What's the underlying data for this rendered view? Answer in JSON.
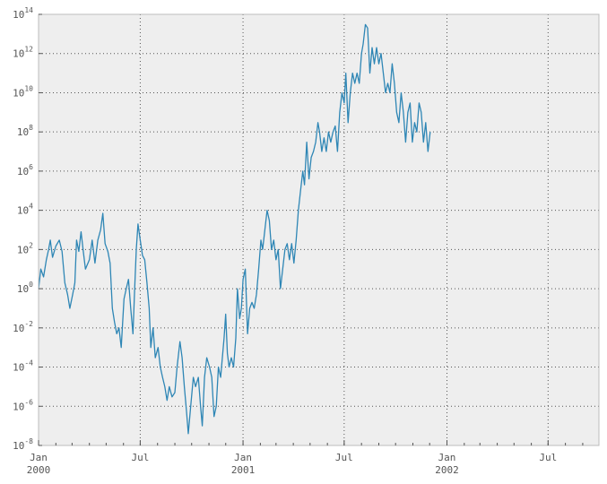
{
  "chart_data": {
    "type": "line",
    "title": "",
    "xlabel": "",
    "ylabel": "",
    "yscale": "log",
    "ylim": [
      1e-08,
      100000000000000.0
    ],
    "xlim": [
      "2000-01-01",
      "2002-09-30"
    ],
    "grid": true,
    "background": "#eeeeee",
    "line_color": "#2e86b5",
    "x_ticks": [
      {
        "date": "2000-01-01",
        "label": "Jan",
        "sub": "2000"
      },
      {
        "date": "2000-07-01",
        "label": "Jul",
        "sub": ""
      },
      {
        "date": "2001-01-01",
        "label": "Jan",
        "sub": "2001"
      },
      {
        "date": "2001-07-01",
        "label": "Jul",
        "sub": ""
      },
      {
        "date": "2002-01-01",
        "label": "Jan",
        "sub": "2002"
      },
      {
        "date": "2002-07-01",
        "label": "Jul",
        "sub": ""
      }
    ],
    "y_ticks": [
      {
        "value": 1e-08,
        "base": "10",
        "exp": "-8"
      },
      {
        "value": 1e-06,
        "base": "10",
        "exp": "-6"
      },
      {
        "value": 0.0001,
        "base": "10",
        "exp": "-4"
      },
      {
        "value": 0.01,
        "base": "10",
        "exp": "-2"
      },
      {
        "value": 1,
        "base": "10",
        "exp": "0"
      },
      {
        "value": 100.0,
        "base": "10",
        "exp": "2"
      },
      {
        "value": 10000.0,
        "base": "10",
        "exp": "4"
      },
      {
        "value": 1000000.0,
        "base": "10",
        "exp": "6"
      },
      {
        "value": 100000000.0,
        "base": "10",
        "exp": "8"
      },
      {
        "value": 10000000000.0,
        "base": "10",
        "exp": "10"
      },
      {
        "value": 1000000000000.0,
        "base": "10",
        "exp": "12"
      },
      {
        "value": 100000000000000.0,
        "base": "10",
        "exp": "14"
      }
    ],
    "series": [
      {
        "points": [
          [
            "2000-01-01",
            1.0
          ],
          [
            "2000-01-05",
            10
          ],
          [
            "2000-01-10",
            4
          ],
          [
            "2000-01-15",
            30
          ],
          [
            "2000-01-19",
            100
          ],
          [
            "2000-01-22",
            300
          ],
          [
            "2000-01-26",
            40
          ],
          [
            "2000-02-01",
            150
          ],
          [
            "2000-02-07",
            300
          ],
          [
            "2000-02-12",
            80
          ],
          [
            "2000-02-17",
            2
          ],
          [
            "2000-02-22",
            0.5
          ],
          [
            "2000-02-26",
            0.1
          ],
          [
            "2000-03-02",
            0.5
          ],
          [
            "2000-03-06",
            2
          ],
          [
            "2000-03-09",
            300
          ],
          [
            "2000-03-13",
            80
          ],
          [
            "2000-03-17",
            800
          ],
          [
            "2000-03-21",
            80
          ],
          [
            "2000-03-25",
            10
          ],
          [
            "2000-04-01",
            30
          ],
          [
            "2000-04-06",
            300
          ],
          [
            "2000-04-11",
            20
          ],
          [
            "2000-04-16",
            300
          ],
          [
            "2000-04-21",
            1000
          ],
          [
            "2000-04-25",
            7000
          ],
          [
            "2000-04-29",
            200
          ],
          [
            "2000-05-04",
            80
          ],
          [
            "2000-05-08",
            20
          ],
          [
            "2000-05-12",
            0.1
          ],
          [
            "2000-05-16",
            0.02
          ],
          [
            "2000-05-20",
            0.005
          ],
          [
            "2000-05-24",
            0.01
          ],
          [
            "2000-05-28",
            0.001
          ],
          [
            "2000-06-02",
            0.3
          ],
          [
            "2000-06-06",
            1
          ],
          [
            "2000-06-10",
            3
          ],
          [
            "2000-06-14",
            0.1
          ],
          [
            "2000-06-18",
            0.005
          ],
          [
            "2000-06-21",
            1
          ],
          [
            "2000-06-24",
            100
          ],
          [
            "2000-06-27",
            2000
          ],
          [
            "2000-07-01",
            300
          ],
          [
            "2000-07-05",
            50
          ],
          [
            "2000-07-09",
            30
          ],
          [
            "2000-07-13",
            2
          ],
          [
            "2000-07-17",
            0.1
          ],
          [
            "2000-07-20",
            0.001
          ],
          [
            "2000-07-24",
            0.01
          ],
          [
            "2000-07-28",
            0.0003
          ],
          [
            "2000-08-02",
            0.001
          ],
          [
            "2000-08-06",
            0.0001
          ],
          [
            "2000-08-10",
            3e-05
          ],
          [
            "2000-08-14",
            1e-05
          ],
          [
            "2000-08-18",
            2e-06
          ],
          [
            "2000-08-22",
            1e-05
          ],
          [
            "2000-08-27",
            3e-06
          ],
          [
            "2000-09-01",
            5e-06
          ],
          [
            "2000-09-05",
            0.0001
          ],
          [
            "2000-09-10",
            0.002
          ],
          [
            "2000-09-14",
            0.0003
          ],
          [
            "2000-09-18",
            1e-05
          ],
          [
            "2000-09-22",
            5e-07
          ],
          [
            "2000-09-25",
            4e-08
          ],
          [
            "2000-09-29",
            8e-07
          ],
          [
            "2000-10-04",
            3e-05
          ],
          [
            "2000-10-08",
            1e-05
          ],
          [
            "2000-10-13",
            3e-05
          ],
          [
            "2000-10-17",
            1e-06
          ],
          [
            "2000-10-20",
            1e-07
          ],
          [
            "2000-10-24",
            3e-05
          ],
          [
            "2000-10-28",
            0.0003
          ],
          [
            "2000-11-02",
            0.0001
          ],
          [
            "2000-11-06",
            3e-05
          ],
          [
            "2000-11-10",
            3e-07
          ],
          [
            "2000-11-14",
            1e-06
          ],
          [
            "2000-11-18",
            0.0001
          ],
          [
            "2000-11-22",
            3e-05
          ],
          [
            "2000-11-25",
            0.0003
          ],
          [
            "2000-11-28",
            0.003
          ],
          [
            "2000-12-01",
            0.05
          ],
          [
            "2000-12-04",
            0.0005
          ],
          [
            "2000-12-07",
            0.0001
          ],
          [
            "2000-12-11",
            0.0003
          ],
          [
            "2000-12-15",
            0.0001
          ],
          [
            "2000-12-19",
            0.003
          ],
          [
            "2000-12-22",
            1
          ],
          [
            "2000-12-26",
            0.03
          ],
          [
            "2000-12-29",
            0.1
          ],
          [
            "2001-01-01",
            3
          ],
          [
            "2001-01-05",
            10
          ],
          [
            "2001-01-09",
            0.005
          ],
          [
            "2001-01-13",
            0.1
          ],
          [
            "2001-01-17",
            0.2
          ],
          [
            "2001-01-21",
            0.1
          ],
          [
            "2001-01-25",
            0.5
          ],
          [
            "2001-01-29",
            10
          ],
          [
            "2001-02-02",
            300
          ],
          [
            "2001-02-05",
            100
          ],
          [
            "2001-02-09",
            1000
          ],
          [
            "2001-02-13",
            10000
          ],
          [
            "2001-02-17",
            3000
          ],
          [
            "2001-02-21",
            100
          ],
          [
            "2001-02-25",
            300
          ],
          [
            "2001-03-01",
            30
          ],
          [
            "2001-03-05",
            100
          ],
          [
            "2001-03-09",
            1
          ],
          [
            "2001-03-13",
            10
          ],
          [
            "2001-03-17",
            100
          ],
          [
            "2001-03-21",
            200
          ],
          [
            "2001-03-25",
            30
          ],
          [
            "2001-03-29",
            200
          ],
          [
            "2001-04-02",
            20
          ],
          [
            "2001-04-06",
            300
          ],
          [
            "2001-04-10",
            10000
          ],
          [
            "2001-04-14",
            100000
          ],
          [
            "2001-04-18",
            1000000
          ],
          [
            "2001-04-21",
            200000
          ],
          [
            "2001-04-25",
            30000000
          ],
          [
            "2001-04-29",
            400000
          ],
          [
            "2001-05-03",
            5000000
          ],
          [
            "2001-05-07",
            10000000
          ],
          [
            "2001-05-11",
            30000000
          ],
          [
            "2001-05-15",
            300000000
          ],
          [
            "2001-05-18",
            100000000
          ],
          [
            "2001-05-22",
            10000000
          ],
          [
            "2001-05-26",
            50000000
          ],
          [
            "2001-05-30",
            10000000
          ],
          [
            "2001-06-03",
            100000000
          ],
          [
            "2001-06-07",
            30000000
          ],
          [
            "2001-06-11",
            100000000
          ],
          [
            "2001-06-15",
            200000000
          ],
          [
            "2001-06-19",
            10000000
          ],
          [
            "2001-06-23",
            1000000000
          ],
          [
            "2001-06-27",
            10000000000
          ],
          [
            "2001-07-01",
            3000000000
          ],
          [
            "2001-07-04",
            100000000000
          ],
          [
            "2001-07-08",
            300000000
          ],
          [
            "2001-07-12",
            10000000000
          ],
          [
            "2001-07-16",
            100000000000
          ],
          [
            "2001-07-20",
            30000000000
          ],
          [
            "2001-07-24",
            100000000000
          ],
          [
            "2001-07-28",
            30000000000
          ],
          [
            "2001-08-01",
            1000000000000
          ],
          [
            "2001-08-04",
            3000000000000
          ],
          [
            "2001-08-08",
            30000000000000
          ],
          [
            "2001-08-12",
            20000000000000
          ],
          [
            "2001-08-16",
            100000000000
          ],
          [
            "2001-08-20",
            2000000000000
          ],
          [
            "2001-08-24",
            300000000000
          ],
          [
            "2001-08-28",
            2000000000000
          ],
          [
            "2001-09-01",
            300000000000
          ],
          [
            "2001-09-05",
            1000000000000
          ],
          [
            "2001-09-09",
            100000000000
          ],
          [
            "2001-09-13",
            10000000000
          ],
          [
            "2001-09-17",
            30000000000
          ],
          [
            "2001-09-21",
            10000000000
          ],
          [
            "2001-09-25",
            300000000000
          ],
          [
            "2001-09-29",
            30000000000
          ],
          [
            "2001-10-03",
            1000000000
          ],
          [
            "2001-10-07",
            300000000
          ],
          [
            "2001-10-11",
            10000000000
          ],
          [
            "2001-10-15",
            1000000000
          ],
          [
            "2001-10-19",
            30000000
          ],
          [
            "2001-10-23",
            1000000000
          ],
          [
            "2001-10-27",
            3000000000
          ],
          [
            "2001-10-31",
            30000000
          ],
          [
            "2001-11-04",
            300000000
          ],
          [
            "2001-11-08",
            100000000
          ],
          [
            "2001-11-12",
            3000000000
          ],
          [
            "2001-11-16",
            1000000000
          ],
          [
            "2001-11-20",
            30000000
          ],
          [
            "2001-11-24",
            300000000
          ],
          [
            "2001-11-28",
            10000000
          ],
          [
            "2001-12-02",
            100000000
          ]
        ]
      }
    ]
  }
}
